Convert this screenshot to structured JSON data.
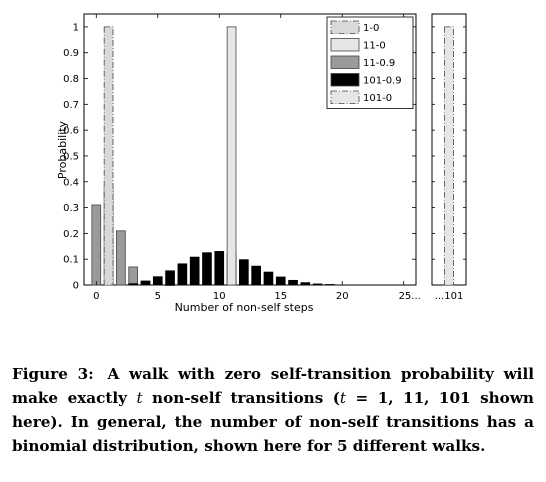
{
  "chart_data": {
    "type": "bar",
    "ylabel": "Probability",
    "xlabel": "Number of non-self steps",
    "xlim": [
      -1,
      26
    ],
    "ylim": [
      0,
      1.05
    ],
    "x_ticks": [
      "0",
      "5",
      "10",
      "15",
      "20",
      "25..."
    ],
    "y_ticks": [
      "0",
      "0.1",
      "0.2",
      "0.3",
      "0.4",
      "0.5",
      "0.6",
      "0.7",
      "0.8",
      "0.9",
      "1"
    ],
    "legend_position": "top-right",
    "series": [
      {
        "name": "1-0",
        "color": "#d9d9d9",
        "pattern": "dash-dot",
        "x": [
          1
        ],
        "values": [
          1.0
        ]
      },
      {
        "name": "11-0",
        "color": "#e6e6e6",
        "pattern": "solid",
        "x": [
          11
        ],
        "values": [
          1.0
        ]
      },
      {
        "name": "11-0.9",
        "color": "#9a9a9a",
        "pattern": "solid",
        "x": [
          0,
          1,
          2,
          3,
          4,
          5,
          6,
          7,
          8,
          9,
          10,
          11
        ],
        "values": [
          0.31,
          0.38,
          0.21,
          0.07,
          0.016,
          0.003,
          0.0003,
          0,
          0,
          0,
          0,
          0
        ]
      },
      {
        "name": "101-0.9",
        "color": "#000000",
        "pattern": "solid",
        "x": [
          3,
          4,
          5,
          6,
          7,
          8,
          9,
          10,
          11,
          12,
          13,
          14,
          15,
          16,
          17,
          18,
          19
        ],
        "values": [
          0.005,
          0.014,
          0.032,
          0.055,
          0.082,
          0.108,
          0.125,
          0.13,
          0.12,
          0.098,
          0.073,
          0.05,
          0.031,
          0.018,
          0.009,
          0.004,
          0.002
        ]
      },
      {
        "name": "101-0",
        "color": "#e6e6e6",
        "pattern": "dash-dot",
        "x": [
          "...101"
        ],
        "values": [
          1.0
        ]
      }
    ],
    "inset": {
      "x_tick": "...101"
    }
  },
  "caption": {
    "label": "Figure 3:",
    "text_1": "A walk with zero self-transition probability will make exactly",
    "var_t": "t",
    "text_2": "non-self transitions (",
    "var_t2": "t",
    "equals": "=",
    "values": "1, 11, 101",
    "text_3": "shown here). In general, the number of non-self transitions has a binomial distribution, shown here for 5 different walks."
  }
}
